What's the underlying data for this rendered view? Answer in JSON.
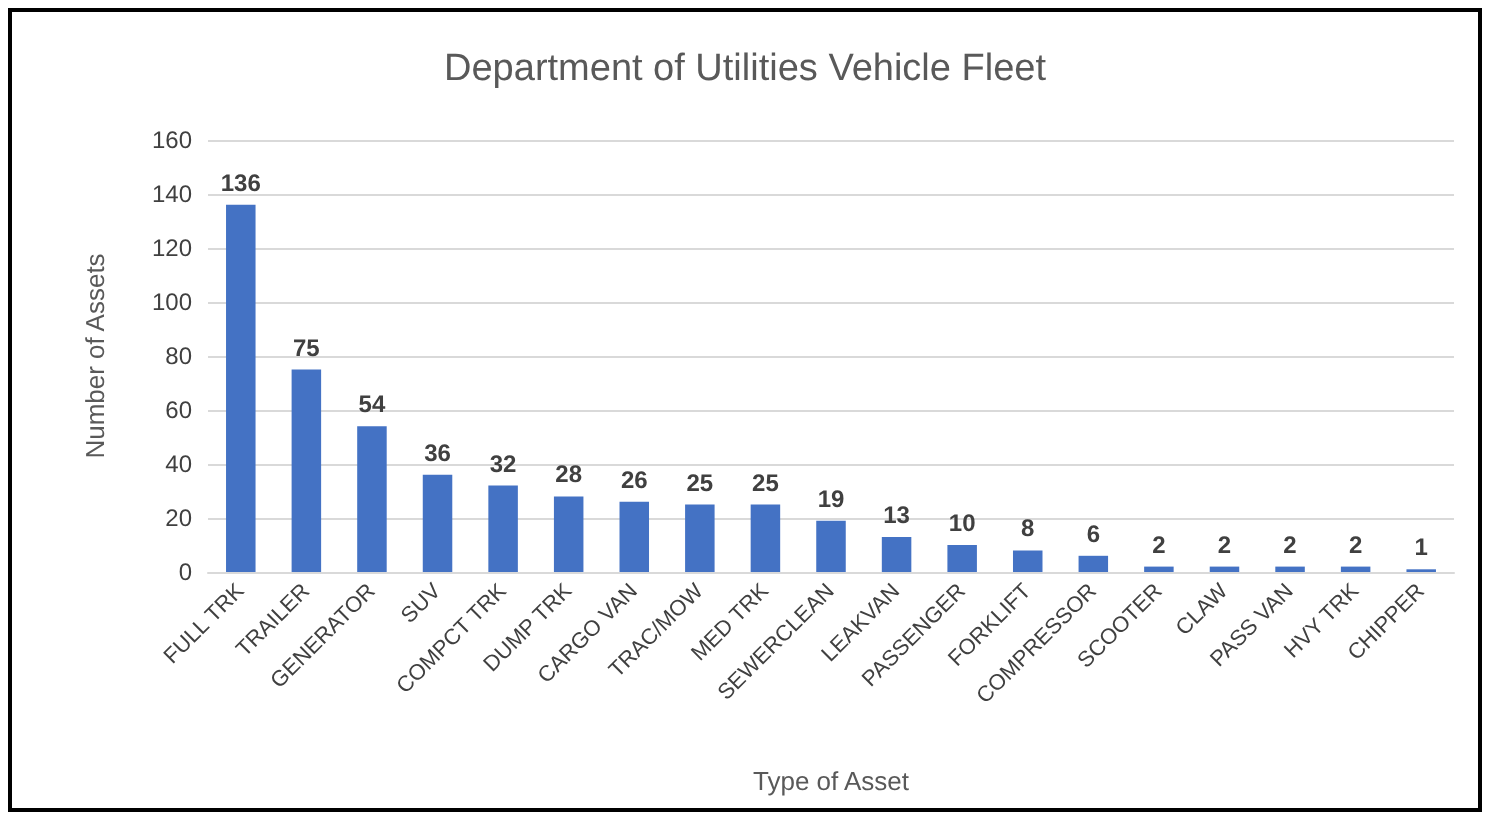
{
  "chart_data": {
    "type": "bar",
    "title": "Department of Utilities Vehicle Fleet",
    "xlabel": "Type of Asset",
    "ylabel": "Number of Assets",
    "categories": [
      "FULL TRK",
      "TRAILER",
      "GENERATOR",
      "SUV",
      "COMPCT TRK",
      "DUMP TRK",
      "CARGO VAN",
      "TRAC/MOW",
      "MED TRK",
      "SEWERCLEAN",
      "LEAKVAN",
      "PASSENGER",
      "FORKLIFT",
      "COMPRESSOR",
      "SCOOTER",
      "CLAW",
      "PASS VAN",
      "HVY TRK",
      "CHIPPER"
    ],
    "values": [
      136,
      75,
      54,
      36,
      32,
      28,
      26,
      25,
      25,
      19,
      13,
      10,
      8,
      6,
      2,
      2,
      2,
      2,
      1
    ],
    "color": "#4472c4",
    "ylim": [
      0,
      160
    ],
    "yticks": [
      0,
      20,
      40,
      60,
      80,
      100,
      120,
      140,
      160
    ],
    "grid": "y",
    "data_labels": true
  }
}
